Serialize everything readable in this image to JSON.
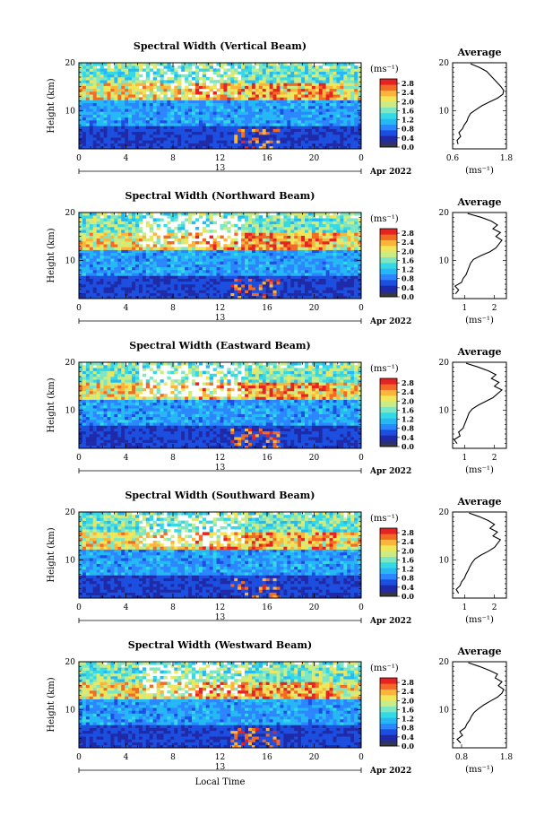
{
  "colors": {
    "scale": [
      "#2a2f78",
      "#1f2aa8",
      "#1c4fe0",
      "#2c86ff",
      "#25b8f5",
      "#35d9e6",
      "#7fe6c4",
      "#c9ec86",
      "#f1e65a",
      "#fbb53a",
      "#f36a25",
      "#e52322"
    ],
    "missing_bin": "#3a3a3a"
  },
  "chart_data": [
    {
      "type": "heatmap",
      "title": "Spectral Width (Vertical Beam)",
      "ylabel": "Height (km)",
      "x_ticks": [
        "0",
        "4",
        "8",
        "12",
        "16",
        "20",
        "0"
      ],
      "y_ticks": [
        "10",
        "20"
      ],
      "xlim": [
        0,
        24
      ],
      "ylim": [
        2,
        20
      ],
      "date_day": "13",
      "date_label": "Apr 2022",
      "colorbar": {
        "unit": "(ms⁻¹)",
        "ticks": [
          "0.0",
          "0.4",
          "0.8",
          "1.2",
          "1.6",
          "2.0",
          "2.4",
          "2.8"
        ],
        "range": [
          0,
          3.0
        ]
      }
    },
    {
      "type": "line",
      "title": "Average",
      "x_ticks": [
        "0.6",
        "1.8"
      ],
      "y_ticks": [
        "10",
        "20"
      ],
      "xlim": [
        0.6,
        1.8
      ],
      "ylim": [
        2,
        20
      ],
      "xlabel": "(ms⁻¹)",
      "series": [
        {
          "x": [
            0.72,
            0.7,
            0.78,
            0.74,
            0.82,
            0.86,
            0.92,
            0.95,
            1.0,
            1.12,
            1.25,
            1.42,
            1.6,
            1.72,
            1.74,
            1.68,
            1.6,
            1.52,
            1.44,
            1.36,
            1.2,
            1.0
          ],
          "y": [
            3,
            3.8,
            4.6,
            5.4,
            6.2,
            7,
            7.8,
            8.6,
            9.4,
            10.2,
            11,
            11.8,
            12.6,
            13.4,
            14.2,
            15,
            15.8,
            16.6,
            17.4,
            18.2,
            19,
            19.8
          ]
        }
      ]
    },
    {
      "type": "heatmap",
      "title": "Spectral Width (Northward Beam)",
      "ylabel": "Height (km)",
      "x_ticks": [
        "0",
        "4",
        "8",
        "12",
        "16",
        "20",
        "0"
      ],
      "y_ticks": [
        "10",
        "20"
      ],
      "xlim": [
        0,
        24
      ],
      "ylim": [
        2,
        20
      ],
      "date_day": "13",
      "date_label": "Apr 2022",
      "colorbar": {
        "unit": "(ms⁻¹)",
        "ticks": [
          "0.0",
          "0.4",
          "0.8",
          "1.2",
          "1.6",
          "2.0",
          "2.4",
          "2.8"
        ],
        "range": [
          0,
          3.0
        ]
      }
    },
    {
      "type": "line",
      "title": "Average",
      "x_ticks": [
        "1",
        "2"
      ],
      "y_ticks": [
        "10",
        "20"
      ],
      "xlim": [
        0.6,
        2.4
      ],
      "ylim": [
        2,
        20
      ],
      "xlabel": "(ms⁻¹)",
      "series": [
        {
          "x": [
            0.7,
            0.8,
            0.68,
            0.9,
            0.95,
            1.05,
            1.1,
            1.15,
            1.2,
            1.3,
            1.55,
            1.85,
            2.05,
            2.15,
            2.25,
            2.05,
            2.2,
            1.95,
            2.1,
            1.9,
            1.55,
            1.1
          ],
          "y": [
            3,
            3.8,
            4.6,
            5.4,
            6.2,
            7,
            7.8,
            8.6,
            9.4,
            10.2,
            11,
            11.8,
            12.6,
            13.4,
            14.2,
            15,
            15.8,
            16.6,
            17.4,
            18.2,
            19,
            19.8
          ]
        }
      ]
    },
    {
      "type": "heatmap",
      "title": "Spectral Width (Eastward Beam)",
      "ylabel": "Height (km)",
      "x_ticks": [
        "0",
        "4",
        "8",
        "12",
        "16",
        "20",
        "0"
      ],
      "y_ticks": [
        "10",
        "20"
      ],
      "xlim": [
        0,
        24
      ],
      "ylim": [
        2,
        20
      ],
      "date_day": "13",
      "date_label": "Apr 2022",
      "colorbar": {
        "unit": "(ms⁻¹)",
        "ticks": [
          "0.0",
          "0.4",
          "0.8",
          "1.2",
          "1.6",
          "2.0",
          "2.4",
          "2.8"
        ],
        "range": [
          0,
          3.0
        ]
      }
    },
    {
      "type": "line",
      "title": "Average",
      "x_ticks": [
        "1",
        "2"
      ],
      "y_ticks": [
        "10",
        "20"
      ],
      "xlim": [
        0.6,
        2.4
      ],
      "ylim": [
        2,
        20
      ],
      "xlabel": "(ms⁻¹)",
      "series": [
        {
          "x": [
            0.75,
            0.65,
            0.85,
            0.8,
            0.95,
            1.0,
            1.05,
            1.1,
            1.15,
            1.25,
            1.45,
            1.7,
            1.95,
            2.1,
            2.25,
            2.0,
            2.15,
            1.9,
            2.05,
            1.8,
            1.45,
            1.05
          ],
          "y": [
            3,
            3.8,
            4.6,
            5.4,
            6.2,
            7,
            7.8,
            8.6,
            9.4,
            10.2,
            11,
            11.8,
            12.6,
            13.4,
            14.2,
            15,
            15.8,
            16.6,
            17.4,
            18.2,
            19,
            19.8
          ]
        }
      ]
    },
    {
      "type": "heatmap",
      "title": "Spectral Width (Southward Beam)",
      "ylabel": "Height (km)",
      "x_ticks": [
        "0",
        "4",
        "8",
        "12",
        "16",
        "20",
        "0"
      ],
      "y_ticks": [
        "10",
        "20"
      ],
      "xlim": [
        0,
        24
      ],
      "ylim": [
        2,
        20
      ],
      "date_day": "13",
      "date_label": "Apr 2022",
      "colorbar": {
        "unit": "(ms⁻¹)",
        "ticks": [
          "0.0",
          "0.4",
          "0.8",
          "1.2",
          "1.6",
          "2.0",
          "2.4",
          "2.8"
        ],
        "range": [
          0,
          3.0
        ]
      }
    },
    {
      "type": "line",
      "title": "Average",
      "x_ticks": [
        "1",
        "2"
      ],
      "y_ticks": [
        "10",
        "20"
      ],
      "xlim": [
        0.6,
        2.4
      ],
      "ylim": [
        2,
        20
      ],
      "xlabel": "(ms⁻¹)",
      "series": [
        {
          "x": [
            0.8,
            0.72,
            0.85,
            0.9,
            1.0,
            1.05,
            1.12,
            1.18,
            1.25,
            1.35,
            1.55,
            1.8,
            2.0,
            2.1,
            2.2,
            1.95,
            2.1,
            1.85,
            2.0,
            1.8,
            1.5,
            1.15
          ],
          "y": [
            3,
            3.8,
            4.6,
            5.4,
            6.2,
            7,
            7.8,
            8.6,
            9.4,
            10.2,
            11,
            11.8,
            12.6,
            13.4,
            14.2,
            15,
            15.8,
            16.6,
            17.4,
            18.2,
            19,
            19.8
          ]
        }
      ]
    },
    {
      "type": "heatmap",
      "title": "Spectral Width (Westward Beam)",
      "ylabel": "Height (km)",
      "xlabel": "Local Time",
      "x_ticks": [
        "0",
        "4",
        "8",
        "12",
        "16",
        "20",
        "0"
      ],
      "y_ticks": [
        "10",
        "20"
      ],
      "xlim": [
        0,
        24
      ],
      "ylim": [
        2,
        20
      ],
      "date_day": "13",
      "date_label": "Apr 2022",
      "colorbar": {
        "unit": "(ms⁻¹)",
        "ticks": [
          "0.0",
          "0.4",
          "0.8",
          "1.2",
          "1.6",
          "2.0",
          "2.4",
          "2.8"
        ],
        "range": [
          0,
          3.0
        ]
      }
    },
    {
      "type": "line",
      "title": "Average",
      "x_ticks": [
        "0.8",
        "1.8"
      ],
      "y_ticks": [
        "10",
        "20"
      ],
      "xlim": [
        0.6,
        1.8
      ],
      "ylim": [
        2,
        20
      ],
      "xlabel": "(ms⁻¹)",
      "series": [
        {
          "x": [
            0.78,
            0.7,
            0.82,
            0.76,
            0.88,
            0.92,
            0.98,
            1.02,
            1.08,
            1.18,
            1.3,
            1.45,
            1.6,
            1.7,
            1.74,
            1.62,
            1.7,
            1.55,
            1.6,
            1.42,
            1.2,
            0.95
          ],
          "y": [
            3,
            3.8,
            4.6,
            5.4,
            6.2,
            7,
            7.8,
            8.6,
            9.4,
            10.2,
            11,
            11.8,
            12.6,
            13.4,
            14.2,
            15,
            15.8,
            16.6,
            17.4,
            18.2,
            19,
            19.8
          ]
        }
      ]
    }
  ]
}
